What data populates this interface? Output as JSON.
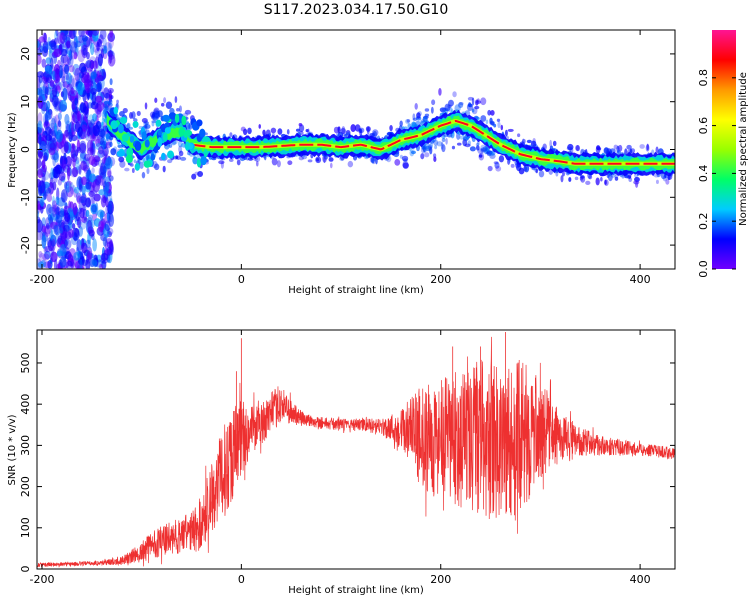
{
  "figure_title": "S117.2023.034.17.50.G10",
  "chart_data": [
    {
      "type": "heatmap",
      "title": "",
      "xlabel": "Height of straight line (km)",
      "ylabel": "Frequency (Hz)",
      "xlim": [
        -205,
        435
      ],
      "ylim": [
        -25,
        25
      ],
      "xticks": [
        -200,
        0,
        200,
        400
      ],
      "yticks": [
        -20,
        -10,
        0,
        10,
        20
      ],
      "colorbar": {
        "label": "Normalized spectral amplitude",
        "range": [
          0,
          1
        ],
        "ticks": [
          0.0,
          0.2,
          0.4,
          0.6,
          0.8
        ],
        "tick_labels": [
          "0.0",
          "0.2",
          "0.4",
          "0.6",
          "0.8"
        ],
        "colormap": [
          "#7000ff",
          "#0000ff",
          "#00ccff",
          "#00ff66",
          "#99ff00",
          "#ffff00",
          "#ff9900",
          "#ff0000",
          "#ff1493"
        ]
      },
      "ridge": {
        "description_values": "dominant frequency vs height",
        "x": [
          -135,
          -120,
          -100,
          -80,
          -60,
          -50,
          -30,
          -15,
          0,
          20,
          60,
          80,
          100,
          120,
          140,
          160,
          180,
          200,
          215,
          230,
          245,
          260,
          280,
          300,
          320,
          335,
          360,
          400,
          435
        ],
        "y": [
          6,
          3,
          0,
          3,
          4,
          1,
          0.5,
          0.5,
          0.5,
          0.5,
          1,
          1,
          0.5,
          1,
          0,
          2,
          3,
          5,
          6,
          5,
          3,
          1,
          -1,
          -2,
          -2.5,
          -3,
          -3,
          -3,
          -3
        ]
      }
    },
    {
      "type": "line",
      "title": "",
      "xlabel": "Height of straight line (km)",
      "ylabel": "SNR (10 * v/v)",
      "xlim": [
        -205,
        435
      ],
      "ylim": [
        0,
        580
      ],
      "xticks": [
        -200,
        0,
        200,
        400
      ],
      "yticks": [
        0,
        100,
        200,
        300,
        400,
        500
      ],
      "line_color": "#ee3030",
      "series": [
        {
          "x": [
            -205,
            -170,
            -140,
            -120,
            -100,
            -90,
            -70,
            -50,
            -40,
            -30,
            -20,
            -10,
            0,
            10,
            20,
            30,
            40,
            50,
            60,
            70,
            80,
            100,
            120,
            140,
            160,
            170,
            180,
            200,
            220,
            240,
            260,
            270,
            280,
            300,
            320,
            340,
            360,
            380,
            400,
            420,
            435
          ],
          "y": [
            10,
            12,
            15,
            20,
            40,
            60,
            75,
            90,
            110,
            180,
            220,
            280,
            320,
            340,
            350,
            380,
            400,
            380,
            365,
            360,
            355,
            350,
            350,
            345,
            340,
            330,
            320,
            310,
            315,
            320,
            310,
            300,
            320,
            340,
            320,
            310,
            300,
            295,
            290,
            285,
            280
          ],
          "envelope": {
            "x": [
              -205,
              -170,
              -140,
              -120,
              -100,
              -90,
              -70,
              -50,
              -40,
              -30,
              -20,
              -10,
              0,
              10,
              20,
              30,
              40,
              50,
              60,
              70,
              80,
              100,
              120,
              140,
              160,
              170,
              180,
              200,
              220,
              240,
              260,
              270,
              280,
              300,
              320,
              340,
              360,
              380,
              400,
              420,
              435
            ],
            "spread": [
              5,
              5,
              6,
              10,
              25,
              35,
              40,
              50,
              70,
              90,
              110,
              120,
              100,
              60,
              50,
              50,
              45,
              30,
              20,
              15,
              15,
              15,
              15,
              20,
              50,
              90,
              120,
              150,
              170,
              190,
              200,
              200,
              190,
              120,
              60,
              35,
              25,
              20,
              15,
              15,
              15
            ],
            "spikes": [
              [
                0,
                560
              ],
              [
                -5,
                480
              ],
              [
                265,
                575
              ],
              [
                212,
                540
              ],
              [
                240,
                540
              ]
            ]
          }
        }
      ]
    }
  ]
}
